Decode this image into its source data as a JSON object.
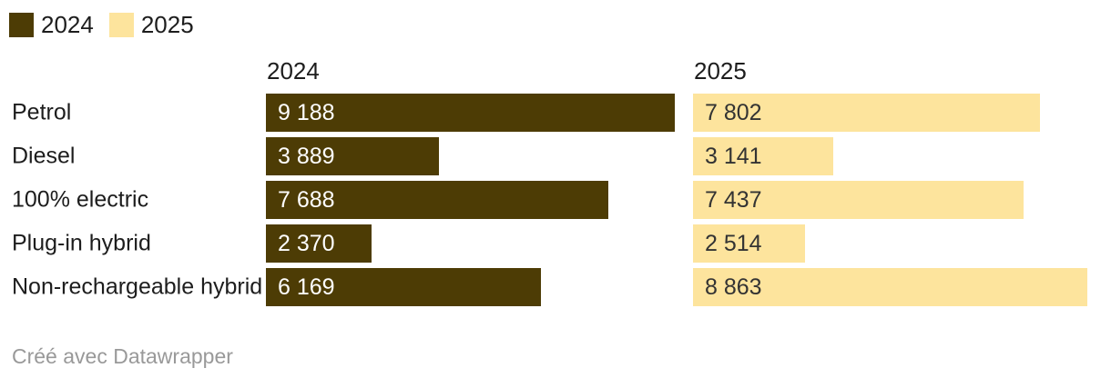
{
  "legend": {
    "items": [
      {
        "label": "2024",
        "color": "#4d3c05"
      },
      {
        "label": "2025",
        "color": "#fde49d"
      }
    ]
  },
  "chart_data": {
    "type": "bar",
    "orientation": "horizontal",
    "layout": "split-columns",
    "title": "",
    "categories": [
      "Petrol",
      "Diesel",
      "100% electric",
      "Plug-in hybrid",
      "Non-rechargeable hybrid"
    ],
    "column_headers": [
      "2024",
      "2025"
    ],
    "series": [
      {
        "name": "2024",
        "color": "#4d3c05",
        "label_color": "#ffffff",
        "values": [
          9188,
          3889,
          7688,
          2370,
          6169
        ],
        "value_labels": [
          "9 188",
          "3 889",
          "7 688",
          "2 370",
          "6 169"
        ]
      },
      {
        "name": "2025",
        "color": "#fde49d",
        "label_color": "#333333",
        "values": [
          7802,
          3141,
          7437,
          2514,
          8863
        ],
        "value_labels": [
          "7 802",
          "3 141",
          "7 437",
          "2 514",
          "8 863"
        ]
      }
    ],
    "xmax": 9188,
    "grid": false,
    "legend_position": "top-left"
  },
  "footer": {
    "credit": "Créé avec Datawrapper"
  }
}
